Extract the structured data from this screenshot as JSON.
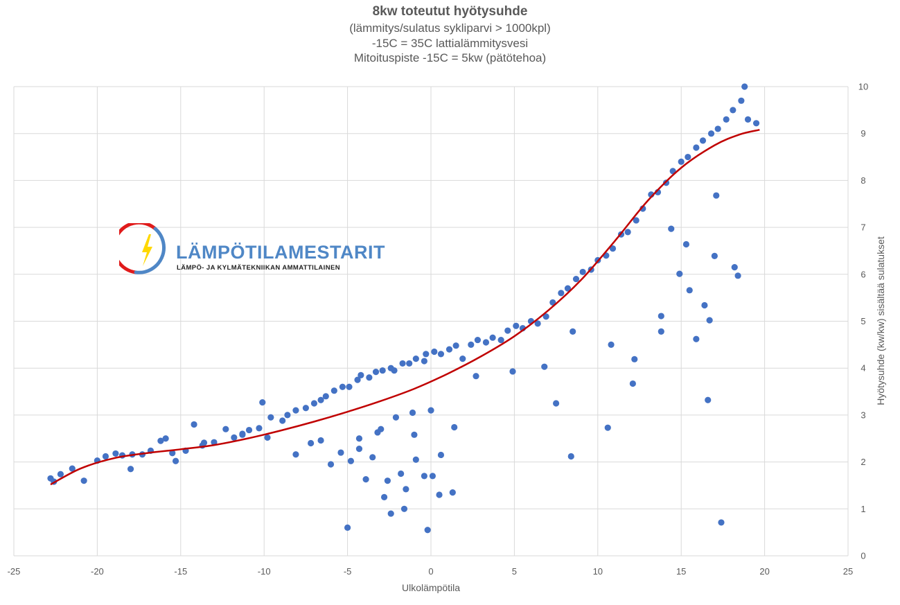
{
  "chart_data": {
    "type": "scatter",
    "title": "8kw toteutut hyötysuhde",
    "subtitle_lines": [
      "(lämmitys/sulatus sykliparvi > 1000kpl)",
      "-15C = 35C lattialämmitysvesi",
      "Mitoituspiste -15C = 5kw (pätötehoa)"
    ],
    "xlabel": "Ulkolämpötila",
    "ylabel": "Hyötysuhde (kw/kw) sisältää sulatukset",
    "xlim": [
      -25,
      25
    ],
    "ylim": [
      0,
      10
    ],
    "x_ticks": [
      "-25",
      "-20",
      "-15",
      "-10",
      "-5",
      "0",
      "5",
      "10",
      "15",
      "20",
      "25"
    ],
    "y_ticks": [
      "0",
      "1",
      "2",
      "3",
      "4",
      "5",
      "6",
      "7",
      "8",
      "9",
      "10"
    ],
    "y_axis_side": "right",
    "grid": true,
    "colors": {
      "points": "#4472c4",
      "trendline": "#c00000",
      "grid": "#d9d9d9"
    },
    "series": [
      {
        "kind": "points",
        "x": [
          -22.8,
          -22.6,
          -22.2,
          -21.5,
          -20.8,
          -20.0,
          -19.5,
          -18.9,
          -18.5,
          -18.0,
          -17.9,
          -17.3,
          -16.8,
          -16.2,
          -15.9,
          -15.5,
          -15.3,
          -14.7,
          -14.2,
          -13.7,
          -13.6,
          -13.0,
          -12.3,
          -11.8,
          -11.3,
          -10.9,
          -10.3,
          -10.1,
          -9.6,
          -8.9,
          -8.6,
          -8.1,
          -7.5,
          -7.0,
          -6.6,
          -6.3,
          -5.8,
          -5.3,
          -4.9,
          -4.4,
          -4.2,
          -3.7,
          -3.3,
          -2.9,
          -2.4,
          -2.2,
          -1.7,
          -1.3,
          -0.9,
          -0.4,
          -0.3,
          0.2,
          0.6,
          1.1,
          1.5,
          1.9,
          2.4,
          2.8,
          3.3,
          3.7,
          4.2,
          4.6,
          5.1,
          5.5,
          6.0,
          6.4,
          6.9,
          7.3,
          7.8,
          8.2,
          8.7,
          9.1,
          9.6,
          10.0,
          10.5,
          10.9,
          11.4,
          11.8,
          12.3,
          12.7,
          13.2,
          13.6,
          14.1,
          14.5,
          15.0,
          15.4,
          15.9,
          16.3,
          16.8,
          17.2,
          17.7,
          18.1,
          18.6,
          19.0,
          19.5,
          -7.2,
          -5.4,
          -4.8,
          -3.5,
          -2.6,
          -1.8,
          -0.9,
          0.1,
          0.5,
          1.3,
          -6.0,
          -3.9,
          -2.8,
          -1.5,
          -0.4,
          0.6,
          -4.3,
          -3.0,
          -2.1,
          -1.1,
          0.0,
          -5.0,
          -2.4,
          -1.6,
          -0.2,
          7.5,
          8.4,
          10.6,
          12.1,
          16.6,
          17.4,
          15.9,
          16.7,
          13.8,
          14.9,
          18.2,
          18.4,
          17.0,
          15.5,
          16.4,
          14.4,
          13.8,
          -11.3,
          -9.8,
          -8.1,
          -6.6,
          -4.3,
          -3.2,
          -1.0,
          1.4,
          2.7,
          4.9,
          6.8,
          8.5,
          10.8,
          12.2,
          15.3,
          17.1,
          18.8
        ],
        "y": [
          1.65,
          1.58,
          1.74,
          1.86,
          1.6,
          2.03,
          2.12,
          2.18,
          2.14,
          1.85,
          2.16,
          2.16,
          2.24,
          2.45,
          2.5,
          2.19,
          2.02,
          2.24,
          2.8,
          2.35,
          2.41,
          2.42,
          2.7,
          2.52,
          2.58,
          2.68,
          2.72,
          3.27,
          2.95,
          2.88,
          3.0,
          3.1,
          3.15,
          3.25,
          3.32,
          3.4,
          3.52,
          3.6,
          3.6,
          3.75,
          3.85,
          3.8,
          3.92,
          3.95,
          4.0,
          3.95,
          4.1,
          4.1,
          4.2,
          4.15,
          4.3,
          4.35,
          4.3,
          4.4,
          4.48,
          4.2,
          4.5,
          4.6,
          4.55,
          4.65,
          4.6,
          4.8,
          4.9,
          4.85,
          5.0,
          4.95,
          5.1,
          5.4,
          5.6,
          5.7,
          5.9,
          6.05,
          6.1,
          6.3,
          6.4,
          6.55,
          6.85,
          6.9,
          7.15,
          7.4,
          7.7,
          7.75,
          7.95,
          8.2,
          8.4,
          8.5,
          8.7,
          8.85,
          9.0,
          9.1,
          9.3,
          9.5,
          9.7,
          9.3,
          9.22,
          2.4,
          2.2,
          2.02,
          2.1,
          1.6,
          1.75,
          2.05,
          1.7,
          1.3,
          1.35,
          1.95,
          1.63,
          1.25,
          1.42,
          1.7,
          2.15,
          2.5,
          2.7,
          2.95,
          3.05,
          3.1,
          0.6,
          0.9,
          1.0,
          0.55,
          3.25,
          2.12,
          2.73,
          3.67,
          3.32,
          0.71,
          4.62,
          5.02,
          4.78,
          6.01,
          6.15,
          5.97,
          6.39,
          5.66,
          5.34,
          6.97,
          5.11,
          2.6,
          2.52,
          2.16,
          2.46,
          2.28,
          2.63,
          2.58,
          2.74,
          3.83,
          3.93,
          4.03,
          4.78,
          4.5,
          4.19,
          6.64,
          7.68,
          10.0
        ],
        "color": "#4472c4"
      },
      {
        "kind": "trendline",
        "x": [
          -22.8,
          -21.0,
          -19.0,
          -17.0,
          -15.0,
          -13.0,
          -11.0,
          -9.0,
          -7.0,
          -5.0,
          -3.0,
          -1.0,
          1.0,
          3.0,
          5.0,
          7.0,
          9.0,
          11.0,
          13.0,
          15.0,
          17.0,
          18.5,
          19.7
        ],
        "y": [
          1.52,
          1.86,
          2.08,
          2.19,
          2.27,
          2.36,
          2.5,
          2.67,
          2.86,
          3.07,
          3.3,
          3.56,
          3.88,
          4.25,
          4.68,
          5.22,
          5.88,
          6.7,
          7.57,
          8.27,
          8.75,
          8.98,
          9.08
        ],
        "color": "#c00000"
      }
    ]
  },
  "logo": {
    "brand": "LÄMPÖTILAMESTARIT",
    "tagline": "LÄMPÖ- JA KYLMÄTEKNIIKAN AMMATTILAINEN"
  }
}
